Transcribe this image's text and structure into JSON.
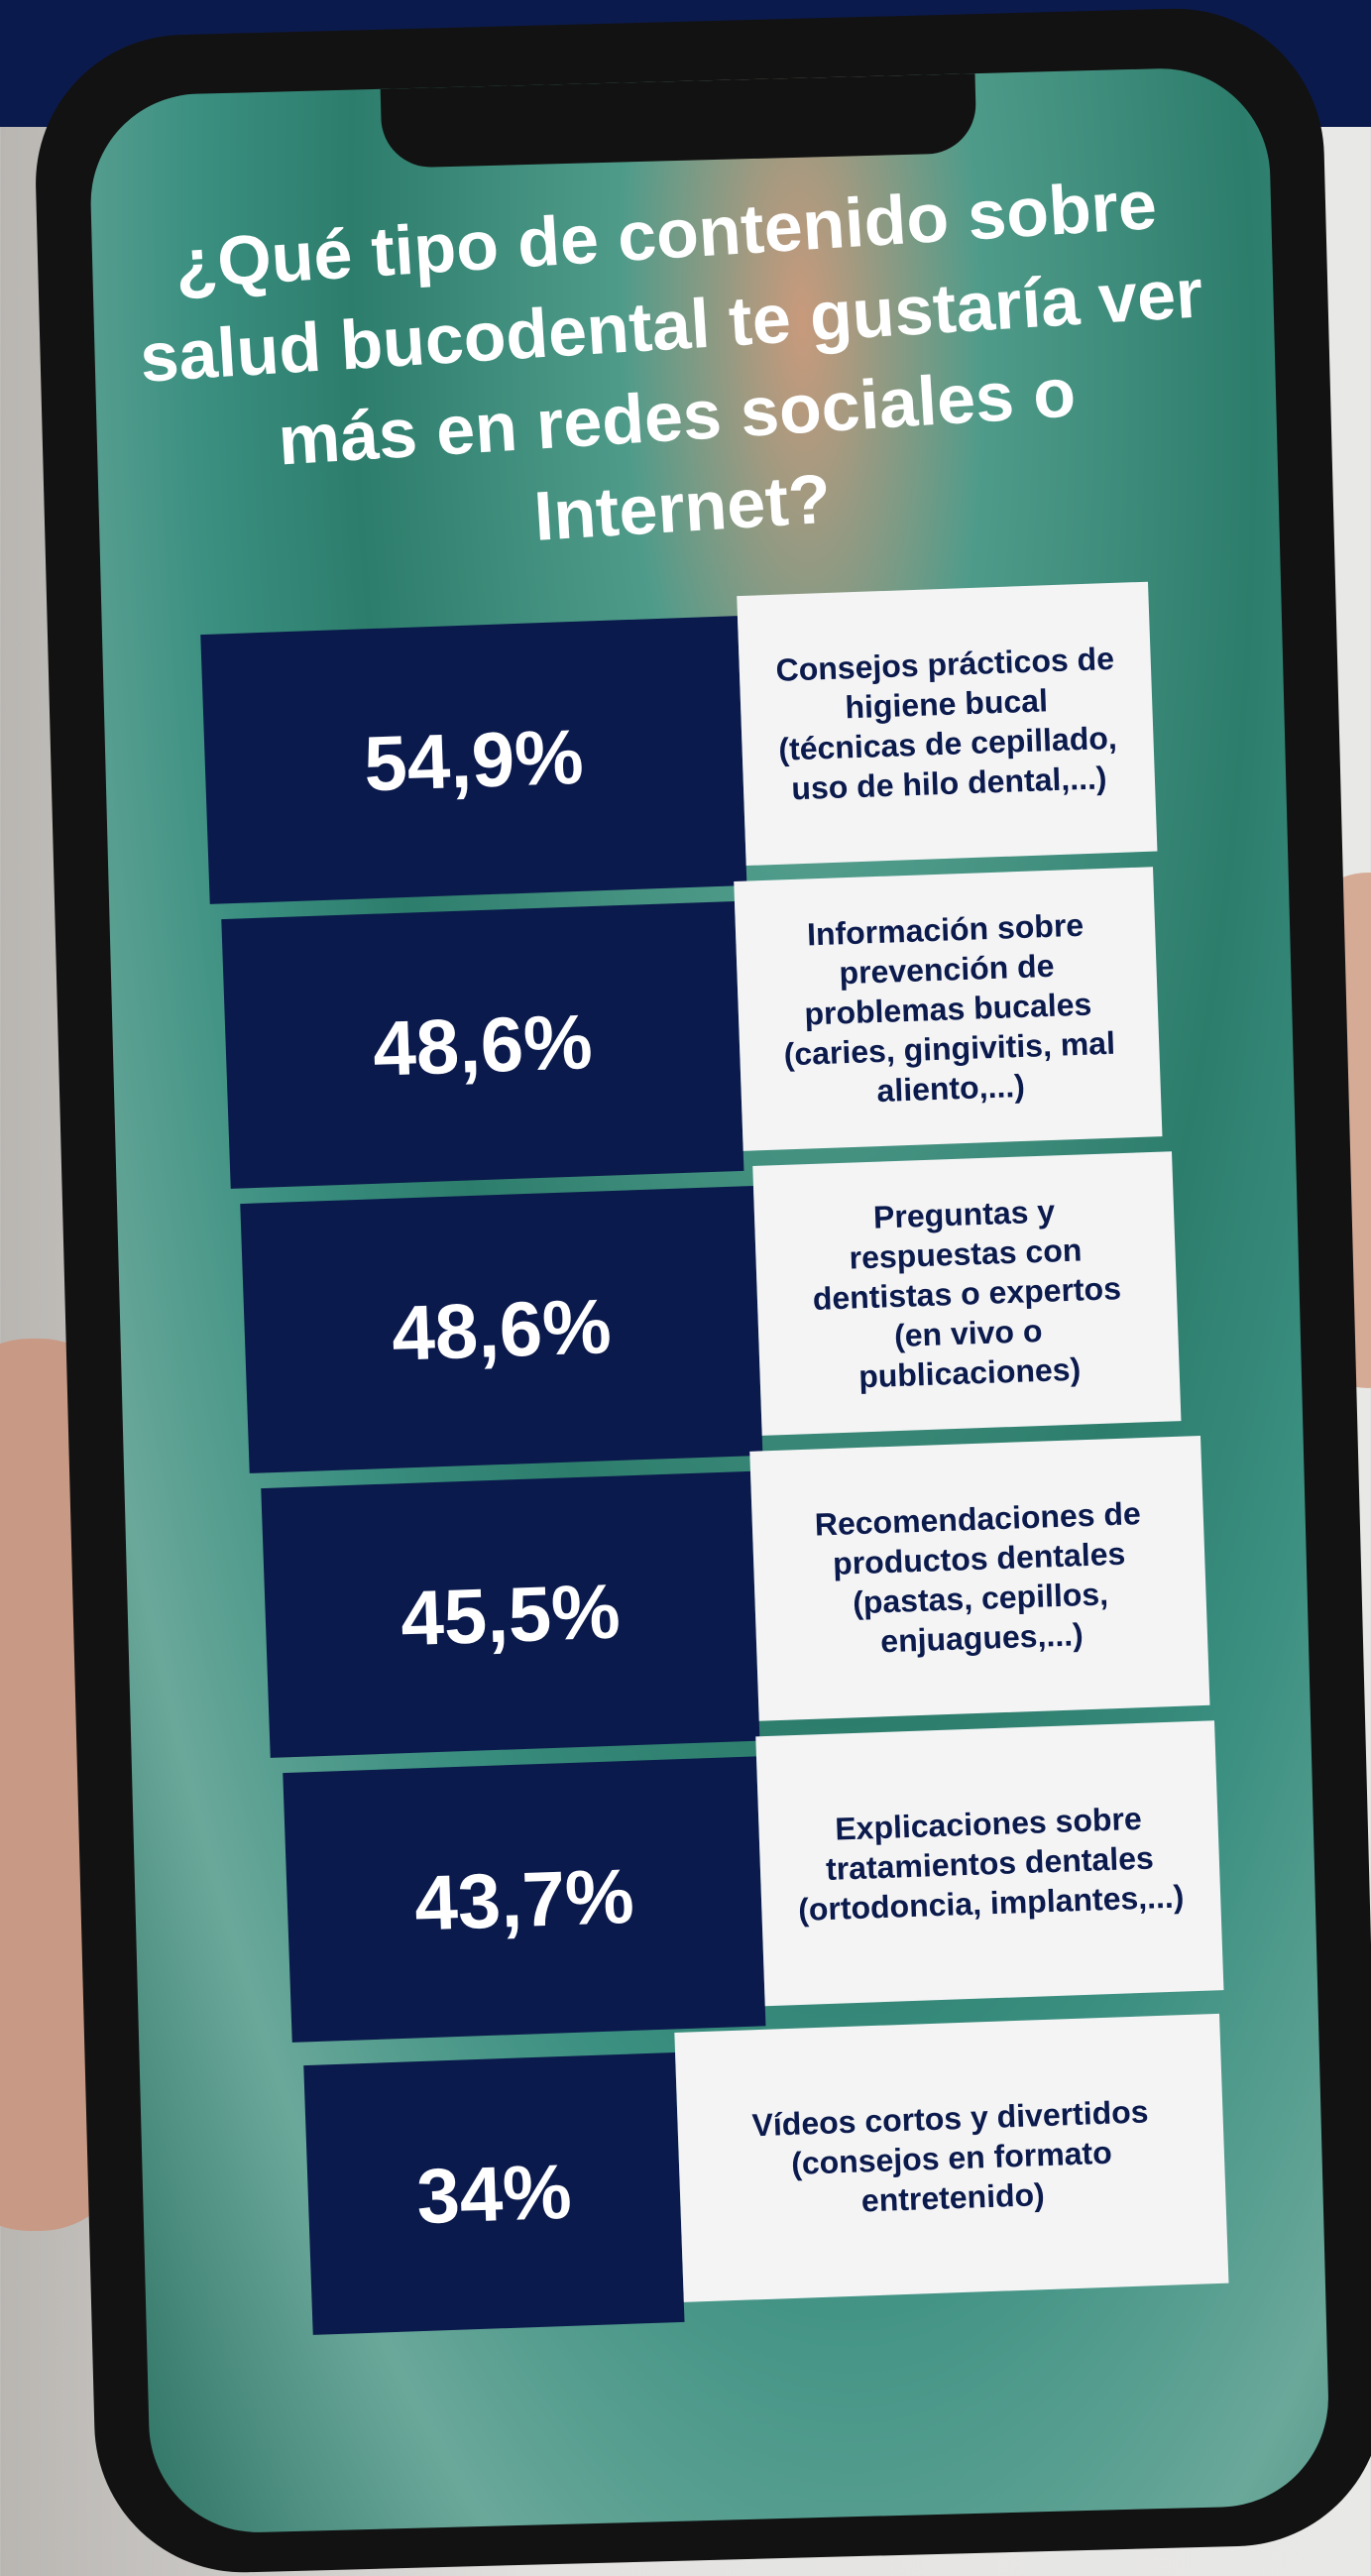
{
  "title": "¿Qué tipo de contenido sobre salud bucodental te gustaría ver más en redes sociales o Internet?",
  "items": [
    {
      "value": "54,9%",
      "label": "Consejos prácticos de higiene bucal (técnicas de cepillado, uso de hilo dental,...)"
    },
    {
      "value": "48,6%",
      "label": "Información sobre prevención de problemas bucales (caries, gingivitis, mal aliento,...)"
    },
    {
      "value": "48,6%",
      "label": "Preguntas y respuestas con dentistas o expertos (en vivo o publicaciones)"
    },
    {
      "value": "45,5%",
      "label": "Recomendaciones de productos dentales (pastas, cepillos, enjuagues,...)"
    },
    {
      "value": "43,7%",
      "label": "Explicaciones sobre tratamientos dentales (ortodoncia, implantes,...)"
    },
    {
      "value": "34%",
      "label": "Vídeos cortos y divertidos (consejos en formato entretenido)"
    }
  ]
}
